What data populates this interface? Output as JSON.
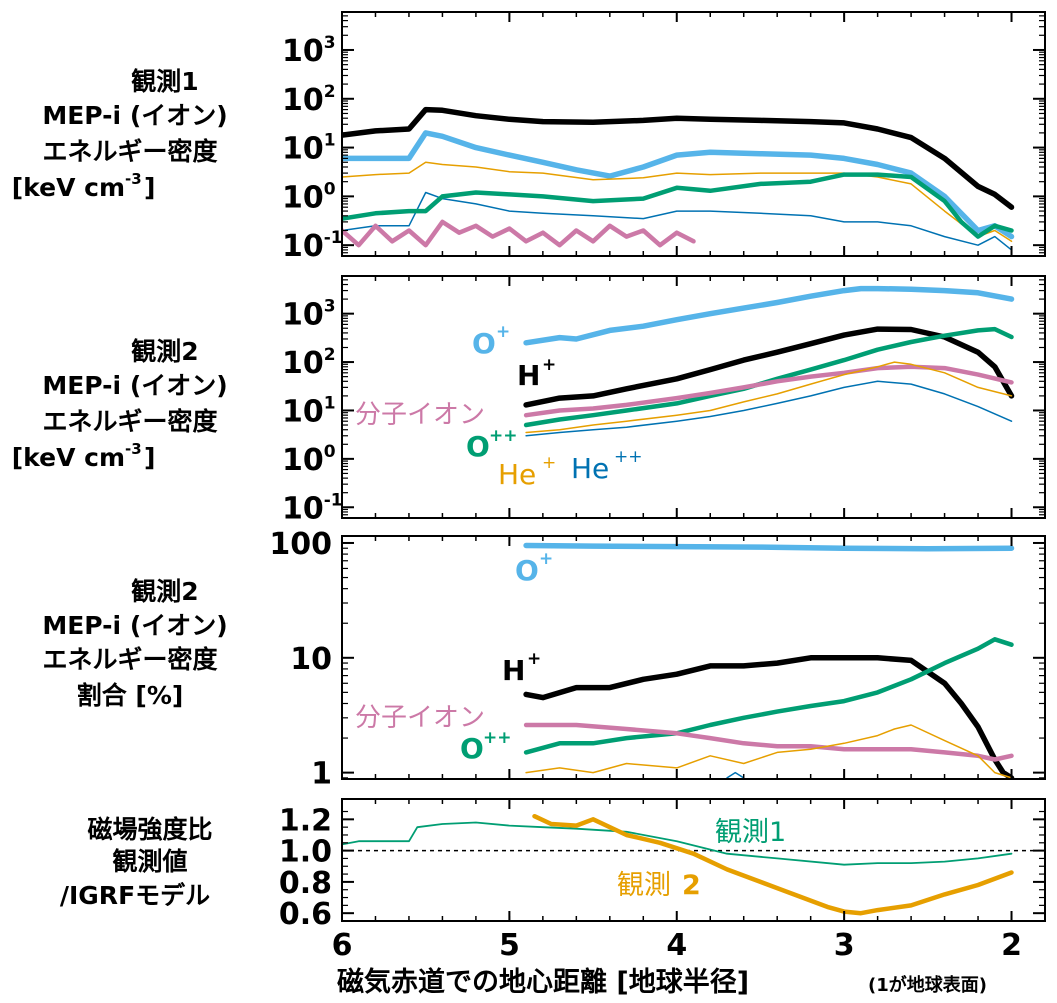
{
  "colors": {
    "H+": "#000000",
    "O+": "#56b4e9",
    "He+": "#e69f00",
    "He++": "#0072b2",
    "O++": "#009e73",
    "分子イオン": "#cc79a7",
    "obs1": "#009e73",
    "obs2": "#e69f00"
  },
  "panel_labels": [
    [
      "観測1",
      "MEP-i (イオン)",
      "エネルギー密度",
      "[keV cm",
      "-3",
      "]"
    ],
    [
      "観測2",
      "MEP-i (イオン)",
      "エネルギー密度",
      "[keV cm",
      "-3",
      "]"
    ],
    [
      "観測2",
      "MEP-i (イオン)",
      "エネルギー密度",
      "割合 [%]"
    ],
    [
      "磁場強度比",
      "観測値",
      "/IGRFモデル"
    ]
  ],
  "species_labels": {
    "p2": {
      "O": "O",
      "O_sup": "+",
      "H": "H",
      "H_sup": "+",
      "mol": "分子イオン",
      "Opp": "O",
      "Opp_sup": "++",
      "Hep": "He",
      "Hep_sup": "+",
      "Hepp": "He",
      "Hepp_sup": "++"
    },
    "p3": {
      "O": "O",
      "O_sup": "+",
      "H": "H",
      "H_sup": "+",
      "mol": "分子イオン",
      "Opp": "O",
      "Opp_sup": "++"
    },
    "p4": {
      "obs1": "観測1",
      "obs2_a": "観測",
      "obs2_b": "2"
    }
  },
  "xlabel_main": "磁気赤道での地心距離 [地球半径]",
  "xlabel_note": "(1が地球表面)",
  "chart_data": [
    {
      "type": "line",
      "panel": "観測1 MEP-i エネルギー密度",
      "y_scale": "log",
      "xlim": [
        6,
        1.8
      ],
      "ylim": [
        0.06,
        6000
      ],
      "yticks": [
        "10^-1",
        "10^0",
        "10^1",
        "10^2",
        "10^3"
      ],
      "series": [
        {
          "name": "H+",
          "x": [
            6.0,
            5.8,
            5.6,
            5.5,
            5.4,
            5.2,
            5.0,
            4.8,
            4.5,
            4.2,
            4.0,
            3.8,
            3.5,
            3.2,
            3.0,
            2.8,
            2.6,
            2.4,
            2.2,
            2.1,
            2.0
          ],
          "y": [
            18,
            22,
            24,
            60,
            58,
            45,
            38,
            34,
            33,
            36,
            40,
            38,
            36,
            34,
            32,
            24,
            16,
            6,
            1.6,
            1.1,
            0.6
          ]
        },
        {
          "name": "O+",
          "x": [
            6.0,
            5.8,
            5.6,
            5.5,
            5.4,
            5.2,
            5.0,
            4.8,
            4.6,
            4.4,
            4.2,
            4.0,
            3.8,
            3.5,
            3.2,
            3.0,
            2.8,
            2.6,
            2.4,
            2.2,
            2.1,
            2.0
          ],
          "y": [
            6,
            6,
            6,
            20,
            17,
            10,
            7,
            5,
            3.5,
            2.6,
            4,
            7,
            8,
            7.5,
            7,
            6,
            4.5,
            3,
            1.0,
            0.2,
            0.25,
            0.15
          ]
        },
        {
          "name": "He+",
          "x": [
            6.0,
            5.8,
            5.6,
            5.5,
            5.4,
            5.2,
            5.0,
            4.8,
            4.5,
            4.2,
            4.0,
            3.8,
            3.5,
            3.2,
            3.0,
            2.8,
            2.6,
            2.4,
            2.2,
            2.1,
            2.0
          ],
          "y": [
            2.5,
            2.8,
            3,
            5,
            4.5,
            4,
            3.2,
            3,
            2.2,
            2.4,
            3,
            2.8,
            3,
            3,
            3,
            2.5,
            1.8,
            0.5,
            0.15,
            0.2,
            0.12
          ]
        },
        {
          "name": "He++",
          "x": [
            6.0,
            5.8,
            5.6,
            5.5,
            5.4,
            5.2,
            5.0,
            4.8,
            4.5,
            4.2,
            4.0,
            3.8,
            3.5,
            3.2,
            3.0,
            2.8,
            2.6,
            2.4,
            2.2,
            2.1,
            2.0
          ],
          "y": [
            0.2,
            0.25,
            0.25,
            1.2,
            0.9,
            0.7,
            0.5,
            0.45,
            0.4,
            0.35,
            0.5,
            0.5,
            0.45,
            0.4,
            0.3,
            0.3,
            0.25,
            0.15,
            0.1,
            0.15,
            0.08
          ]
        },
        {
          "name": "O++",
          "x": [
            6.0,
            5.8,
            5.6,
            5.5,
            5.4,
            5.2,
            5.0,
            4.8,
            4.5,
            4.2,
            4.0,
            3.8,
            3.5,
            3.2,
            3.0,
            2.8,
            2.6,
            2.4,
            2.3,
            2.2,
            2.1,
            2.0
          ],
          "y": [
            0.35,
            0.45,
            0.5,
            0.5,
            1.0,
            1.2,
            1.1,
            1.0,
            0.8,
            0.9,
            1.5,
            1.3,
            1.8,
            2.0,
            2.8,
            2.8,
            2.5,
            0.8,
            0.3,
            0.15,
            0.25,
            0.2
          ]
        },
        {
          "name": "分子イオン",
          "x": [
            6.0,
            5.9,
            5.8,
            5.7,
            5.6,
            5.5,
            5.4,
            5.3,
            5.2,
            5.1,
            5.0,
            4.9,
            4.8,
            4.7,
            4.6,
            4.5,
            4.4,
            4.3,
            4.2,
            4.1,
            4.0,
            3.9
          ],
          "y": [
            0.2,
            0.1,
            0.25,
            0.12,
            0.2,
            0.1,
            0.3,
            0.18,
            0.25,
            0.15,
            0.22,
            0.12,
            0.18,
            0.1,
            0.2,
            0.12,
            0.25,
            0.15,
            0.2,
            0.1,
            0.18,
            0.12
          ]
        }
      ]
    },
    {
      "type": "line",
      "panel": "観測2 MEP-i エネルギー密度",
      "y_scale": "log",
      "xlim": [
        6,
        1.8
      ],
      "ylim": [
        0.06,
        6000
      ],
      "yticks": [
        "10^-1",
        "10^0",
        "10^1",
        "10^2",
        "10^3"
      ],
      "series": [
        {
          "name": "O+",
          "x": [
            4.9,
            4.7,
            4.6,
            4.4,
            4.2,
            4.0,
            3.8,
            3.6,
            3.4,
            3.2,
            3.0,
            2.9,
            2.8,
            2.6,
            2.4,
            2.2,
            2.0
          ],
          "y": [
            250,
            320,
            300,
            450,
            550,
            750,
            1000,
            1300,
            1700,
            2300,
            3000,
            3300,
            3300,
            3200,
            3000,
            2700,
            2000
          ]
        },
        {
          "name": "H+",
          "x": [
            4.9,
            4.7,
            4.5,
            4.3,
            4.0,
            3.8,
            3.6,
            3.4,
            3.2,
            3.0,
            2.8,
            2.6,
            2.4,
            2.2,
            2.1,
            2.0
          ],
          "y": [
            13,
            18,
            20,
            28,
            45,
            70,
            110,
            160,
            240,
            360,
            480,
            470,
            330,
            160,
            80,
            20
          ]
        },
        {
          "name": "O++",
          "x": [
            4.9,
            4.7,
            4.5,
            4.3,
            4.0,
            3.8,
            3.6,
            3.4,
            3.2,
            3.0,
            2.8,
            2.6,
            2.4,
            2.2,
            2.1,
            2.0
          ],
          "y": [
            5,
            6.5,
            8,
            10,
            14,
            20,
            28,
            45,
            70,
            110,
            180,
            260,
            350,
            450,
            480,
            330
          ]
        },
        {
          "name": "分子イオン",
          "x": [
            4.9,
            4.7,
            4.5,
            4.3,
            4.0,
            3.8,
            3.6,
            3.4,
            3.2,
            3.0,
            2.8,
            2.6,
            2.4,
            2.2,
            2.0
          ],
          "y": [
            8,
            10,
            11,
            13,
            18,
            23,
            30,
            40,
            50,
            60,
            75,
            80,
            75,
            55,
            38
          ]
        },
        {
          "name": "He+",
          "x": [
            4.9,
            4.7,
            4.5,
            4.3,
            4.0,
            3.8,
            3.6,
            3.4,
            3.2,
            3.0,
            2.8,
            2.7,
            2.6,
            2.4,
            2.2,
            2.0
          ],
          "y": [
            3.5,
            4,
            5,
            6,
            8,
            10,
            15,
            22,
            35,
            55,
            80,
            100,
            90,
            60,
            30,
            20
          ]
        },
        {
          "name": "He++",
          "x": [
            4.9,
            4.7,
            4.5,
            4.3,
            4.0,
            3.8,
            3.6,
            3.4,
            3.2,
            3.0,
            2.8,
            2.6,
            2.4,
            2.2,
            2.0
          ],
          "y": [
            3,
            3.5,
            4,
            4.5,
            6,
            7.5,
            10,
            14,
            20,
            30,
            40,
            35,
            22,
            12,
            6
          ]
        }
      ]
    },
    {
      "type": "line",
      "panel": "観測2 MEP-i エネルギー密度 割合 [%]",
      "y_scale": "log",
      "xlim": [
        6,
        1.8
      ],
      "ylim": [
        0.88,
        115
      ],
      "yticks": [
        "1",
        "10",
        "100"
      ],
      "series": [
        {
          "name": "O+",
          "x": [
            4.9,
            4.5,
            4.0,
            3.5,
            3.0,
            2.5,
            2.0
          ],
          "y": [
            95,
            94,
            93,
            92,
            90,
            89,
            90
          ]
        },
        {
          "name": "H+",
          "x": [
            4.9,
            4.8,
            4.6,
            4.4,
            4.2,
            4.0,
            3.8,
            3.6,
            3.4,
            3.2,
            3.0,
            2.8,
            2.6,
            2.4,
            2.3,
            2.2,
            2.1,
            2.05,
            2.0
          ],
          "y": [
            4.8,
            4.5,
            5.5,
            5.5,
            6.5,
            7.2,
            8.5,
            8.5,
            9,
            10,
            10,
            10,
            9.5,
            6,
            4,
            2.5,
            1.3,
            1.0,
            0.9
          ]
        },
        {
          "name": "O++",
          "x": [
            4.9,
            4.7,
            4.5,
            4.3,
            4.0,
            3.8,
            3.6,
            3.4,
            3.2,
            3.0,
            2.8,
            2.6,
            2.4,
            2.2,
            2.1,
            2.0
          ],
          "y": [
            1.5,
            1.8,
            1.8,
            2,
            2.2,
            2.6,
            3,
            3.4,
            3.8,
            4.2,
            5,
            6.5,
            9,
            12,
            14.5,
            13
          ]
        },
        {
          "name": "分子イオン",
          "x": [
            4.9,
            4.6,
            4.3,
            4.0,
            3.8,
            3.6,
            3.4,
            3.2,
            3.0,
            2.8,
            2.6,
            2.4,
            2.2,
            2.1,
            2.0
          ],
          "y": [
            2.6,
            2.6,
            2.4,
            2.2,
            2.0,
            1.8,
            1.7,
            1.7,
            1.6,
            1.6,
            1.6,
            1.5,
            1.4,
            1.3,
            1.4
          ]
        },
        {
          "name": "He+",
          "x": [
            4.9,
            4.7,
            4.5,
            4.3,
            4.0,
            3.8,
            3.6,
            3.4,
            3.2,
            3.0,
            2.8,
            2.7,
            2.6,
            2.4,
            2.2,
            2.1,
            2.0
          ],
          "y": [
            1.0,
            1.1,
            1.0,
            1.2,
            1.1,
            1.4,
            1.2,
            1.5,
            1.6,
            1.8,
            2.1,
            2.4,
            2.6,
            1.9,
            1.4,
            1.0,
            0.9
          ]
        },
        {
          "name": "He++",
          "x": [
            3.7,
            3.65,
            3.6
          ],
          "y": [
            0.9,
            1.0,
            0.9
          ]
        }
      ]
    },
    {
      "type": "line",
      "panel": "磁場強度比 観測値/IGRFモデル",
      "y_scale": "linear",
      "xlim": [
        6,
        1.8
      ],
      "ylim": [
        0.55,
        1.33
      ],
      "yticks": [
        "0.6",
        "0.8",
        "1.0",
        "1.2"
      ],
      "xticks": [
        "6",
        "5",
        "4",
        "3",
        "2"
      ],
      "reference_line": 1.0,
      "series": [
        {
          "name": "観測1",
          "x": [
            6.0,
            5.9,
            5.7,
            5.6,
            5.55,
            5.4,
            5.2,
            5.0,
            4.8,
            4.6,
            4.3,
            4.0,
            3.7,
            3.4,
            3.0,
            2.8,
            2.6,
            2.4,
            2.2,
            2.0
          ],
          "y": [
            1.04,
            1.06,
            1.06,
            1.06,
            1.15,
            1.17,
            1.18,
            1.16,
            1.15,
            1.14,
            1.12,
            1.06,
            0.98,
            0.95,
            0.91,
            0.92,
            0.92,
            0.93,
            0.95,
            0.98
          ]
        },
        {
          "name": "観測2",
          "x": [
            4.85,
            4.75,
            4.6,
            4.5,
            4.3,
            4.1,
            3.9,
            3.7,
            3.5,
            3.3,
            3.1,
            3.0,
            2.9,
            2.8,
            2.6,
            2.4,
            2.2,
            2.0
          ],
          "y": [
            1.22,
            1.17,
            1.16,
            1.2,
            1.1,
            1.05,
            0.98,
            0.88,
            0.8,
            0.72,
            0.64,
            0.61,
            0.6,
            0.62,
            0.65,
            0.72,
            0.78,
            0.86
          ]
        }
      ]
    }
  ]
}
